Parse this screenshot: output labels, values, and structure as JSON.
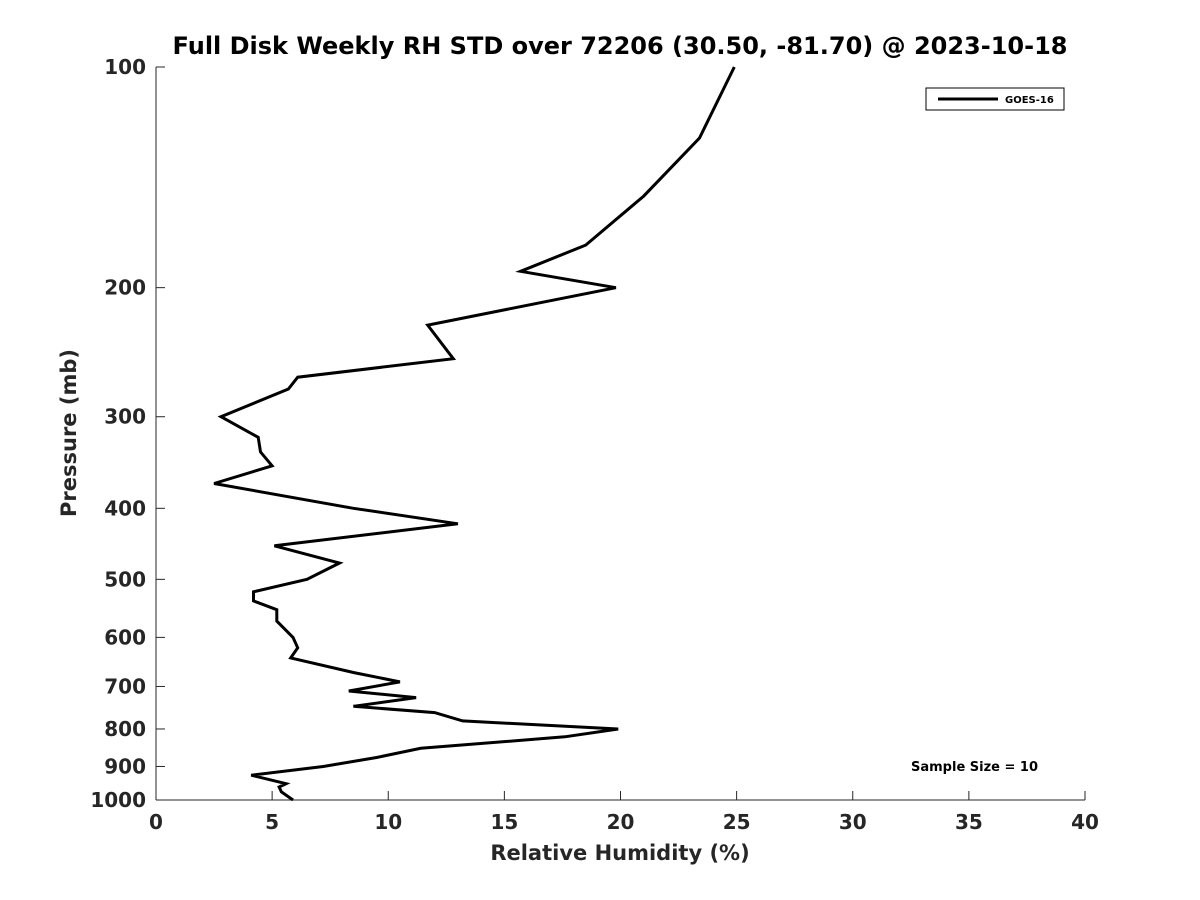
{
  "chart_data": {
    "type": "line",
    "title": "Full Disk Weekly RH STD over 72206 (30.50, -81.70) @ 2023-10-18",
    "xlabel": "Relative Humidity (%)",
    "ylabel": "Pressure (mb)",
    "xlim": [
      0,
      40
    ],
    "ylim": [
      100,
      1000
    ],
    "y_scale": "log",
    "y_reversed": true,
    "x_ticks": [
      0,
      5,
      10,
      15,
      20,
      25,
      30,
      35,
      40
    ],
    "y_ticks": [
      100,
      200,
      300,
      400,
      500,
      600,
      700,
      800,
      900,
      1000
    ],
    "grid": false,
    "legend": {
      "position": "top-right",
      "entries": [
        "GOES-16"
      ]
    },
    "annotation": "Sample Size = 10",
    "series": [
      {
        "name": "GOES-16",
        "color": "#000000",
        "points": [
          [
            24.9,
            100
          ],
          [
            23.4,
            125
          ],
          [
            21.0,
            150
          ],
          [
            18.5,
            175
          ],
          [
            15.7,
            190
          ],
          [
            19.8,
            200
          ],
          [
            11.7,
            225
          ],
          [
            12.8,
            250
          ],
          [
            6.1,
            265
          ],
          [
            5.7,
            275
          ],
          [
            2.8,
            300
          ],
          [
            4.4,
            320
          ],
          [
            4.5,
            335
          ],
          [
            5.0,
            350
          ],
          [
            2.5,
            370
          ],
          [
            8.5,
            400
          ],
          [
            13.0,
            420
          ],
          [
            5.1,
            450
          ],
          [
            7.9,
            475
          ],
          [
            6.5,
            500
          ],
          [
            4.2,
            520
          ],
          [
            4.2,
            535
          ],
          [
            5.2,
            550
          ],
          [
            5.2,
            570
          ],
          [
            5.9,
            600
          ],
          [
            6.1,
            620
          ],
          [
            5.8,
            640
          ],
          [
            8.5,
            670
          ],
          [
            10.5,
            690
          ],
          [
            8.3,
            710
          ],
          [
            11.2,
            725
          ],
          [
            8.5,
            745
          ],
          [
            12.0,
            760
          ],
          [
            13.2,
            780
          ],
          [
            19.9,
            800
          ],
          [
            17.6,
            820
          ],
          [
            11.4,
            850
          ],
          [
            9.5,
            875
          ],
          [
            7.2,
            900
          ],
          [
            4.1,
            925
          ],
          [
            5.6,
            950
          ],
          [
            5.3,
            960
          ],
          [
            5.4,
            975
          ],
          [
            5.9,
            1000
          ]
        ]
      }
    ]
  }
}
